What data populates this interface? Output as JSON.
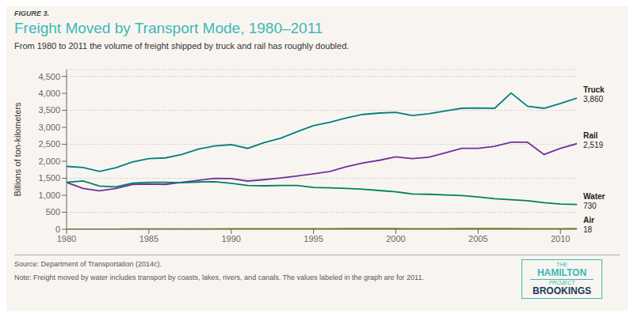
{
  "chart_data": {
    "type": "line",
    "figure_label": "FIGURE 3.",
    "title": "Freight Moved by Transport Mode, 1980–2011",
    "subtitle": "From 1980 to 2011 the volume of freight shipped by truck and rail has roughly doubled.",
    "ylabel": "Billions of ton-kilometers",
    "source": "Source: Department of Transportation (2014c).",
    "note": "Note: Freight moved by water includes transport by coasts, lakes, rivers, and canals. The values labeled in the graph are for 2011.",
    "logo": [
      "THE",
      "HAMILTON",
      "PROJECT",
      "BROOKINGS"
    ],
    "x": [
      1980,
      1981,
      1982,
      1983,
      1984,
      1985,
      1986,
      1987,
      1988,
      1989,
      1990,
      1991,
      1992,
      1993,
      1994,
      1995,
      1996,
      1997,
      1998,
      1999,
      2000,
      2001,
      2002,
      2003,
      2004,
      2005,
      2006,
      2007,
      2008,
      2009,
      2010,
      2011
    ],
    "series": [
      {
        "name": "Truck",
        "color": "#008080",
        "values": [
          1850,
          1820,
          1700,
          1810,
          1980,
          2080,
          2100,
          2200,
          2360,
          2450,
          2490,
          2380,
          2550,
          2680,
          2870,
          3050,
          3150,
          3280,
          3380,
          3420,
          3440,
          3350,
          3400,
          3480,
          3560,
          3570,
          3560,
          4010,
          3620,
          3560,
          3700,
          3860
        ]
      },
      {
        "name": "Rail",
        "color": "#7030a0",
        "values": [
          1380,
          1200,
          1130,
          1200,
          1320,
          1330,
          1320,
          1380,
          1440,
          1500,
          1490,
          1420,
          1460,
          1510,
          1570,
          1630,
          1700,
          1840,
          1950,
          2030,
          2130,
          2080,
          2120,
          2250,
          2380,
          2380,
          2440,
          2560,
          2560,
          2200,
          2380,
          2519
        ]
      },
      {
        "name": "Water",
        "color": "#008060",
        "values": [
          1380,
          1420,
          1270,
          1250,
          1360,
          1380,
          1380,
          1370,
          1390,
          1400,
          1350,
          1290,
          1280,
          1290,
          1290,
          1230,
          1220,
          1200,
          1180,
          1140,
          1100,
          1040,
          1030,
          1010,
          990,
          950,
          900,
          870,
          840,
          780,
          740,
          730
        ]
      },
      {
        "name": "Air",
        "color": "#808000",
        "values": [
          5,
          5,
          5,
          5,
          6,
          7,
          8,
          9,
          10,
          11,
          12,
          12,
          13,
          14,
          15,
          16,
          16,
          17,
          17,
          17,
          17,
          15,
          15,
          16,
          17,
          17,
          17,
          17,
          16,
          14,
          16,
          18
        ]
      }
    ],
    "annotations": [
      {
        "x": 2011,
        "y": 3860,
        "text": "3,860"
      },
      {
        "x": 2011,
        "y": 2519,
        "text": "2,519"
      },
      {
        "x": 2011,
        "y": 730,
        "text": "730"
      },
      {
        "x": 2011,
        "y": 18,
        "text": "18"
      }
    ],
    "xlim": [
      1980,
      2011
    ],
    "xticks": [
      1980,
      1985,
      1990,
      1995,
      2000,
      2005,
      2010
    ],
    "ylim": [
      0,
      4700
    ],
    "yticks": [
      0,
      500,
      {
        "value": 1000,
        "label": "1,000"
      },
      {
        "value": 1500,
        "label": "1,500"
      },
      {
        "value": 2000,
        "label": "2,000"
      },
      {
        "value": 2500,
        "label": "2,500"
      },
      {
        "value": 3000,
        "label": "3,000"
      },
      {
        "value": 3500,
        "label": "3,500"
      },
      {
        "value": 4000,
        "label": "4,000"
      },
      {
        "value": 4500,
        "label": "4,500"
      }
    ],
    "grid": true
  }
}
